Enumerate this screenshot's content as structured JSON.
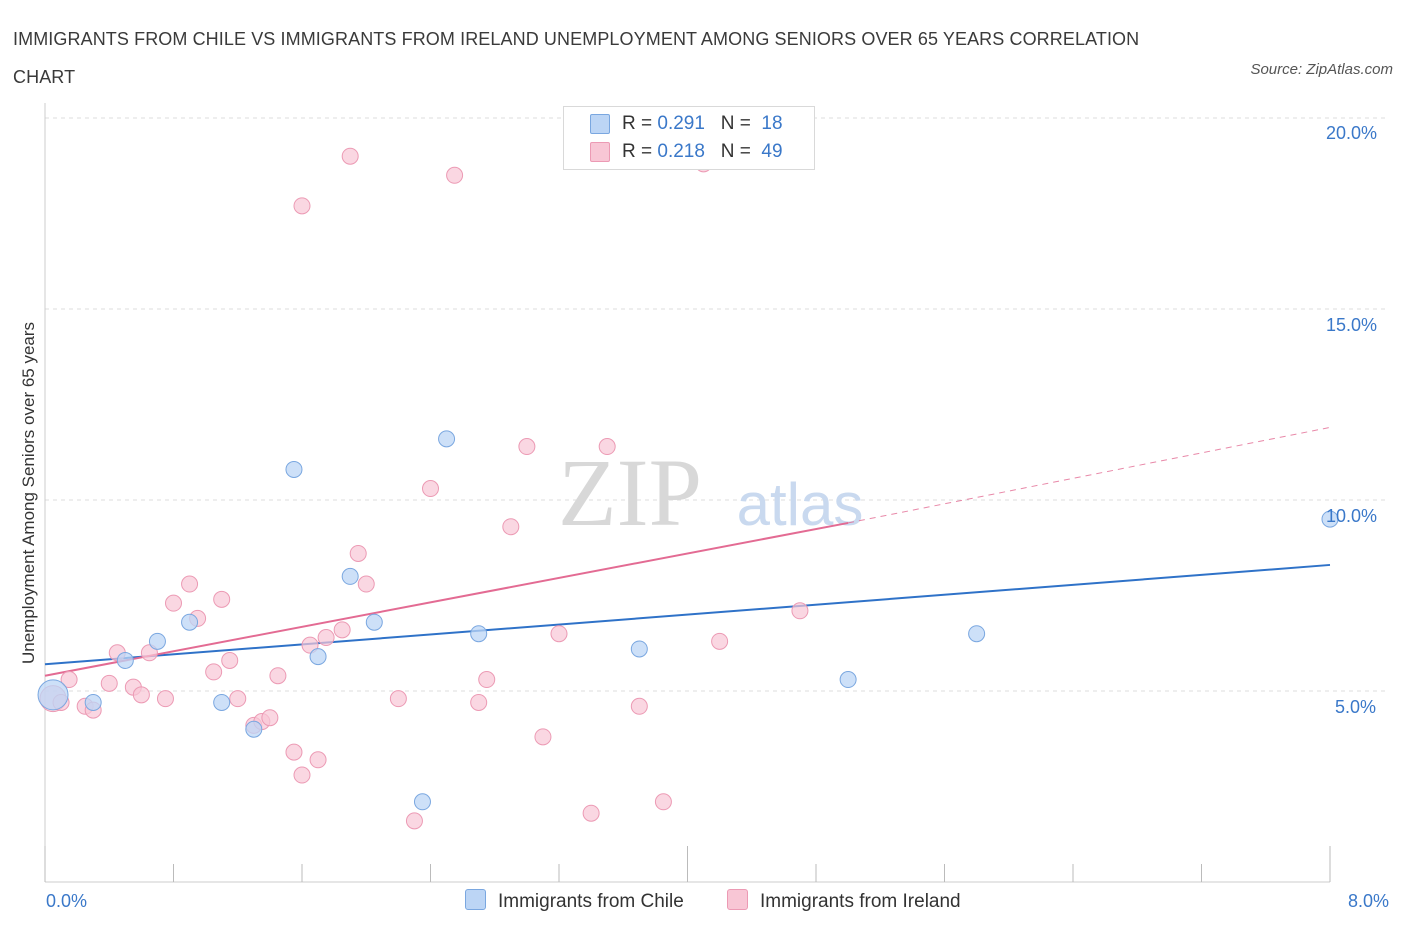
{
  "title": "IMMIGRANTS FROM CHILE VS IMMIGRANTS FROM IRELAND UNEMPLOYMENT AMONG SENIORS OVER 65 YEARS CORRELATION CHART",
  "source": "Source: ZipAtlas.com",
  "watermark": {
    "zip": "ZIP",
    "atlas": "atlas"
  },
  "legend": {
    "rows": [
      {
        "r_label": "R = ",
        "r_value": "0.291",
        "n_label": "N = ",
        "n_value": "18",
        "color": "#a9c8f0"
      },
      {
        "r_label": "R = ",
        "r_value": "0.218",
        "n_label": "N = ",
        "n_value": "49",
        "color": "#f5b8cb"
      }
    ]
  },
  "bottom_legend": {
    "chile": "Immigrants from Chile",
    "ireland": "Immigrants from Ireland"
  },
  "axes": {
    "x_min_label": "0.0%",
    "x_max_label": "8.0%",
    "y_ticks": [
      "5.0%",
      "10.0%",
      "15.0%",
      "20.0%"
    ],
    "ylabel": "Unemployment Among Seniors over 65 years"
  },
  "colors": {
    "chile_fill": "#bcd5f5",
    "chile_stroke": "#7aa7e0",
    "chile_line": "#2f72c8",
    "ireland_fill": "#f8c6d5",
    "ireland_stroke": "#ec9ab4",
    "ireland_line": "#e36b93",
    "grid": "#dddddd",
    "axis_label": "#3a78c9"
  },
  "chart_data": {
    "type": "scatter",
    "xlim": [
      0,
      8
    ],
    "ylim": [
      0,
      20
    ],
    "xlabel": "",
    "ylabel": "Unemployment Among Seniors over 65 years",
    "grid": true,
    "legend_position": "top-center",
    "series": [
      {
        "name": "Immigrants from Chile",
        "r": 0.291,
        "n": 18,
        "points": [
          [
            0.05,
            4.9
          ],
          [
            0.3,
            4.7
          ],
          [
            0.5,
            5.8
          ],
          [
            0.7,
            6.3
          ],
          [
            0.9,
            6.8
          ],
          [
            1.1,
            4.7
          ],
          [
            1.3,
            4.0
          ],
          [
            1.55,
            10.8
          ],
          [
            1.7,
            5.9
          ],
          [
            1.9,
            8.0
          ],
          [
            2.05,
            6.8
          ],
          [
            2.35,
            2.1
          ],
          [
            2.5,
            11.6
          ],
          [
            2.7,
            6.5
          ],
          [
            3.7,
            6.1
          ],
          [
            5.0,
            5.3
          ],
          [
            5.8,
            6.5
          ],
          [
            8.0,
            9.5
          ]
        ],
        "trend": {
          "x0": 0,
          "y0": 5.7,
          "x1": 8.0,
          "y1": 8.3
        }
      },
      {
        "name": "Immigrants from Ireland",
        "r": 0.218,
        "n": 49,
        "points": [
          [
            0.05,
            4.8
          ],
          [
            0.15,
            5.3
          ],
          [
            0.25,
            4.6
          ],
          [
            0.3,
            4.5
          ],
          [
            0.4,
            5.2
          ],
          [
            0.45,
            6.0
          ],
          [
            0.55,
            5.1
          ],
          [
            0.6,
            4.9
          ],
          [
            0.65,
            6.0
          ],
          [
            0.75,
            4.8
          ],
          [
            0.8,
            7.3
          ],
          [
            0.9,
            7.8
          ],
          [
            0.95,
            6.9
          ],
          [
            1.05,
            5.5
          ],
          [
            1.1,
            7.4
          ],
          [
            1.15,
            5.8
          ],
          [
            1.2,
            4.8
          ],
          [
            1.3,
            4.1
          ],
          [
            1.35,
            4.2
          ],
          [
            1.4,
            4.3
          ],
          [
            1.45,
            5.4
          ],
          [
            1.55,
            3.4
          ],
          [
            1.6,
            2.8
          ],
          [
            1.65,
            6.2
          ],
          [
            1.7,
            3.2
          ],
          [
            1.75,
            6.4
          ],
          [
            1.85,
            6.6
          ],
          [
            1.95,
            8.6
          ],
          [
            2.0,
            7.8
          ],
          [
            1.6,
            17.7
          ],
          [
            1.9,
            19.0
          ],
          [
            2.2,
            4.8
          ],
          [
            2.3,
            1.6
          ],
          [
            2.4,
            10.3
          ],
          [
            2.55,
            18.5
          ],
          [
            2.7,
            4.7
          ],
          [
            2.75,
            5.3
          ],
          [
            2.9,
            9.3
          ],
          [
            3.0,
            11.4
          ],
          [
            3.1,
            3.8
          ],
          [
            3.2,
            6.5
          ],
          [
            3.4,
            1.8
          ],
          [
            3.5,
            11.4
          ],
          [
            3.7,
            4.6
          ],
          [
            3.85,
            2.1
          ],
          [
            4.2,
            6.3
          ],
          [
            4.1,
            18.8
          ],
          [
            4.7,
            7.1
          ],
          [
            0.1,
            4.7
          ]
        ],
        "trend": {
          "x0": 0,
          "y0": 5.4,
          "x1": 5.0,
          "y1": 9.4
        },
        "trend_extension": {
          "x0": 5.0,
          "y0": 9.4,
          "x1": 8.0,
          "y1": 11.9
        }
      }
    ]
  }
}
